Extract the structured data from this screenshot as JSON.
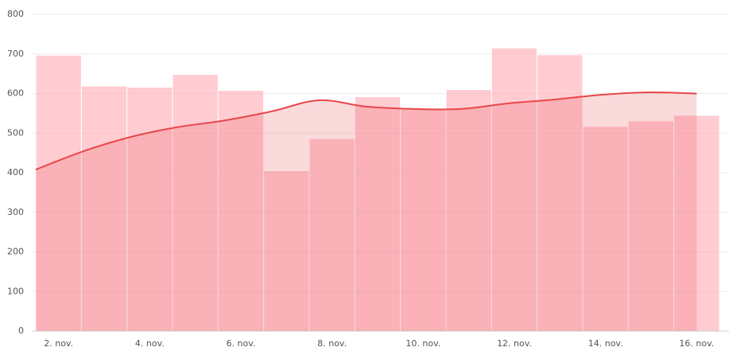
{
  "chart_data": {
    "type": "bar",
    "categories": [
      "2. nov.",
      null,
      "4. nov.",
      null,
      "6. nov.",
      null,
      "8. nov.",
      null,
      "10. nov.",
      null,
      "12. nov.",
      null,
      "14. nov.",
      null,
      "16. nov."
    ],
    "series": [
      {
        "type": "bar",
        "color": "#ff9aa6",
        "values": [
          697,
          619,
          616,
          648,
          608,
          405,
          486,
          592,
          562,
          610,
          715,
          698,
          517,
          531,
          545
        ]
      },
      {
        "type": "line",
        "color": "#e8474a",
        "values": [
          408,
          454,
          490,
          515,
          532,
          555,
          583,
          567,
          561,
          561,
          575,
          585,
          597,
          603,
          600
        ]
      }
    ],
    "ylim": [
      0,
      800
    ],
    "yticks": [
      0,
      100,
      200,
      300,
      400,
      500,
      600,
      700,
      800
    ],
    "grid": true
  }
}
